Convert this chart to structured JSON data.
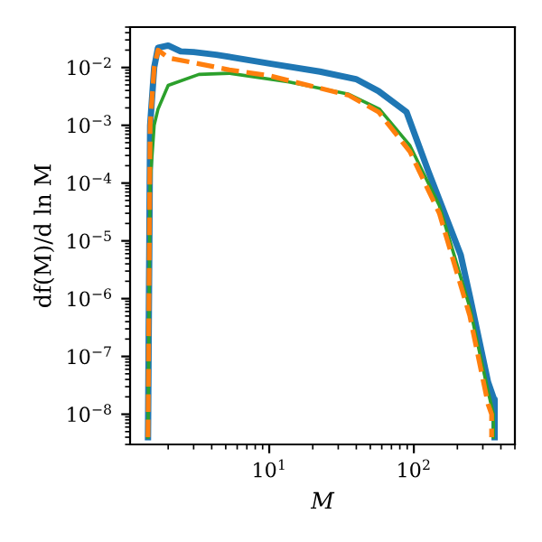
{
  "chart_data": {
    "type": "line",
    "xlabel": "M",
    "ylabel": "df(M)/d ln M",
    "log": "xy",
    "grid": false,
    "legend": false,
    "marker": "none",
    "xlim": [
      1.09,
      500
    ],
    "ylim": [
      3e-09,
      0.05
    ],
    "xticks": [
      {
        "value": 10,
        "label": "10$^{1}$"
      },
      {
        "value": 100,
        "label": "10$^{2}$"
      }
    ],
    "yticks": [
      {
        "value": 1e-08,
        "label": "10$^{−8}$"
      },
      {
        "value": 1e-07,
        "label": "10$^{−7}$"
      },
      {
        "value": 1e-06,
        "label": "10$^{−6}$"
      },
      {
        "value": 1e-05,
        "label": "10$^{−5}$"
      },
      {
        "value": 0.0001,
        "label": "10$^{−4}$"
      },
      {
        "value": 0.001,
        "label": "10$^{−3}$"
      },
      {
        "value": 0.01,
        "label": "10$^{−2}$"
      }
    ],
    "series": [
      {
        "color": "#1f77b4",
        "line_style": "solid",
        "x": [
          1.45,
          1.5,
          1.6,
          1.7,
          2.0,
          2.44,
          3.0,
          4.3,
          10.3,
          22.4,
          39.8,
          57,
          89,
          126,
          211,
          244,
          326,
          359,
          362,
          362
        ],
        "values": [
          4e-09,
          0.001,
          0.01,
          0.022,
          0.024,
          0.019,
          0.0185,
          0.0166,
          0.0116,
          0.0085,
          0.0063,
          0.0039,
          0.0017,
          0.00016,
          5.7e-06,
          1.1e-06,
          3.6e-08,
          1.8e-08,
          1.8e-08,
          4e-09
        ]
      },
      {
        "color": "#ff7f0e",
        "line_style": "dashed",
        "x": [
          1.45,
          1.5,
          1.6,
          1.7,
          2.0,
          3.26,
          5.3,
          10,
          35.5,
          57,
          94,
          150,
          244,
          326,
          345,
          345
        ],
        "values": [
          4e-09,
          0.001,
          0.01,
          0.02,
          0.0147,
          0.0116,
          0.0091,
          0.0072,
          0.0033,
          0.0017,
          0.00035,
          3e-05,
          5e-07,
          1.5e-08,
          1e-08,
          4e-09
        ]
      },
      {
        "color": "#2ca02c",
        "line_style": "solid",
        "x": [
          1.45,
          1.5,
          1.6,
          1.7,
          2.0,
          3.26,
          5.3,
          13.7,
          35.5,
          57.9,
          94,
          150,
          244,
          326,
          355,
          355
        ],
        "values": [
          4e-09,
          0.0001,
          0.001,
          0.0019,
          0.0049,
          0.0076,
          0.00795,
          0.0056,
          0.00345,
          0.0019,
          0.000445,
          4.1e-05,
          7e-07,
          2.5e-08,
          1e-08,
          4e-09
        ]
      }
    ]
  }
}
